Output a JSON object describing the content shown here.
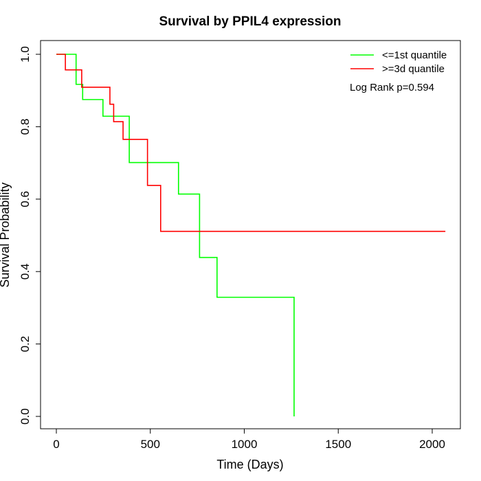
{
  "chart_data": {
    "type": "line",
    "title": "Survival by PPIL4 expression",
    "xlabel": "Time (Days)",
    "ylabel": "Survival Probability",
    "xlim": [
      0,
      2070
    ],
    "ylim": [
      0,
      1.0
    ],
    "x_ticks": [
      0,
      500,
      1000,
      1500,
      2000
    ],
    "x_tick_labels": [
      "0",
      "500",
      "1000",
      "1500",
      "2000"
    ],
    "y_ticks": [
      0.0,
      0.2,
      0.4,
      0.6,
      0.8,
      1.0
    ],
    "y_tick_labels": [
      "0.0",
      "0.2",
      "0.4",
      "0.6",
      "0.8",
      "1.0"
    ],
    "grid": false,
    "legend_position": "top-right",
    "annotation": "Log Rank p=0.594",
    "series": [
      {
        "name": "<=1st quantile",
        "color": "#00ff00",
        "step": true,
        "x": [
          0,
          105,
          140,
          248,
          375,
          388,
          650,
          760,
          762,
          855,
          1265,
          1265
        ],
        "y": [
          1.0,
          0.917,
          0.875,
          0.829,
          0.829,
          0.701,
          0.614,
          0.614,
          0.439,
          0.329,
          0.329,
          0.0
        ]
      },
      {
        "name": ">=3d quantile",
        "color": "#ff0000",
        "step": true,
        "x": [
          0,
          48,
          135,
          285,
          305,
          355,
          485,
          555,
          2070
        ],
        "y": [
          1.0,
          0.957,
          0.909,
          0.862,
          0.814,
          0.765,
          0.638,
          0.511,
          0.511
        ]
      }
    ]
  }
}
